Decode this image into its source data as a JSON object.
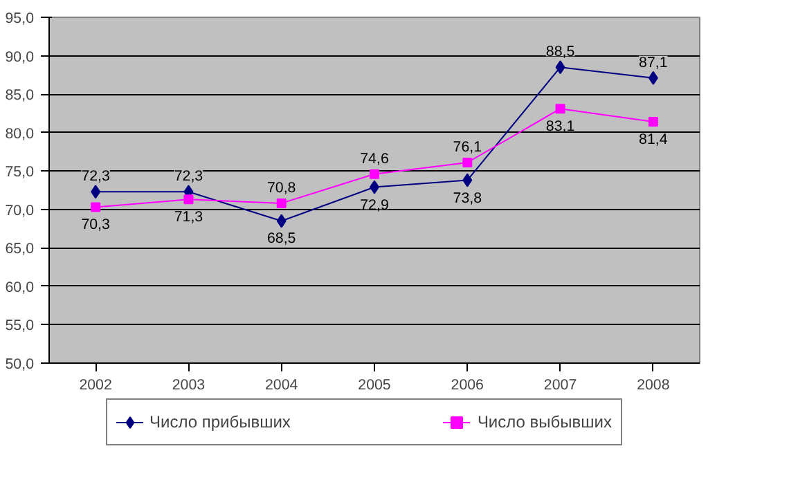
{
  "chart_data": {
    "type": "line",
    "categories": [
      "2002",
      "2003",
      "2004",
      "2005",
      "2006",
      "2007",
      "2008"
    ],
    "series": [
      {
        "name": "Число прибывших",
        "color": "#000080",
        "marker": "diamond",
        "values": [
          72.3,
          72.3,
          68.5,
          72.9,
          73.8,
          88.5,
          87.1
        ],
        "value_labels": [
          "72,3",
          "72,3",
          "68,5",
          "72,9",
          "73,8",
          "88,5",
          "87,1"
        ]
      },
      {
        "name": "Число выбывших",
        "color": "#ff00ff",
        "marker": "square",
        "values": [
          70.3,
          71.3,
          70.8,
          74.6,
          76.1,
          83.1,
          81.4
        ],
        "value_labels": [
          "70,3",
          "71,3",
          "70,8",
          "74,6",
          "76,1",
          "83,1",
          "81,4"
        ]
      }
    ],
    "ylim": [
      50,
      95
    ],
    "yticks": [
      {
        "value": 50,
        "label": "50,0"
      },
      {
        "value": 55,
        "label": "55,0"
      },
      {
        "value": 60,
        "label": "60,0"
      },
      {
        "value": 65,
        "label": "65,0"
      },
      {
        "value": 70,
        "label": "70,0"
      },
      {
        "value": 75,
        "label": "75,0"
      },
      {
        "value": 80,
        "label": "80,0"
      },
      {
        "value": 85,
        "label": "85,0"
      },
      {
        "value": 90,
        "label": "90,0"
      },
      {
        "value": 95,
        "label": "95,0"
      }
    ],
    "grid": "y",
    "legend": "bottom",
    "line_style": "solid"
  }
}
